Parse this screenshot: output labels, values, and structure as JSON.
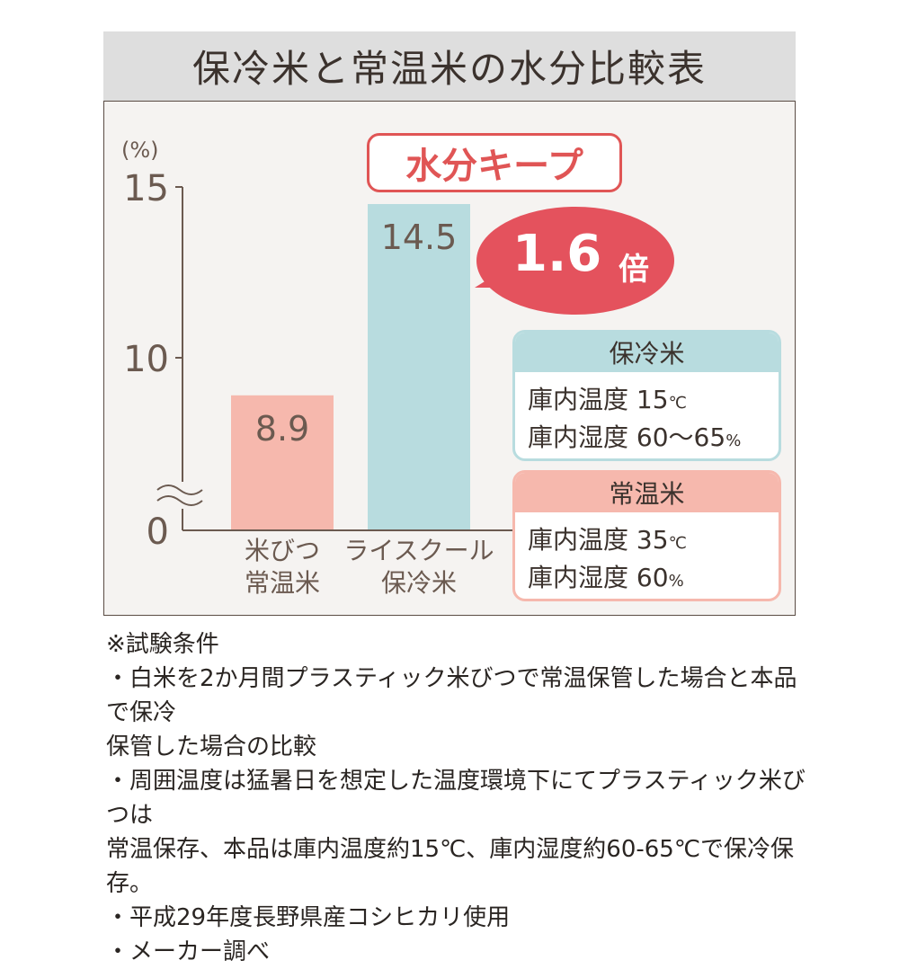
{
  "title": "保冷米と常温米の水分比較表",
  "badge": "水分キープ",
  "bubble": {
    "value": "1.6",
    "unit": "倍"
  },
  "chart_data": {
    "type": "bar",
    "title": "保冷米と常温米の水分比較表",
    "ylabel": "(%)",
    "categories": [
      [
        "米びつ",
        "常温米"
      ],
      [
        "ライスクール",
        "保冷米"
      ]
    ],
    "values": [
      8.9,
      14.5
    ],
    "data_labels": [
      "8.9",
      "14.5"
    ],
    "colors": [
      "#f6b8ad",
      "#b8dcdf"
    ],
    "yticks": [
      "0",
      "10",
      "15"
    ],
    "ylim": [
      0,
      15
    ],
    "axis_break": true
  },
  "info": [
    {
      "header": "保冷米",
      "color": "#b8dcdf",
      "lines": [
        {
          "label": "庫内温度",
          "value": "15",
          "unit": "℃"
        },
        {
          "label": "庫内湿度",
          "value": "60〜65",
          "unit": "%"
        }
      ]
    },
    {
      "header": "常温米",
      "color": "#f6b8ad",
      "lines": [
        {
          "label": "庫内温度",
          "value": "35",
          "unit": "℃"
        },
        {
          "label": "庫内湿度",
          "value": "60",
          "unit": "%"
        }
      ]
    }
  ],
  "notes": [
    "※試験条件",
    "・白米を2か月間プラスティック米びつで常温保管した場合と本品で保冷",
    "保管した場合の比較",
    "・周囲温度は猛暑日を想定した温度環境下にてプラスティック米びつは",
    "常温保存、本品は庫内温度約15℃、庫内湿度約60-65℃で保冷保存。",
    "・平成29年度長野県産コシヒカリ使用",
    "・メーカー調べ"
  ]
}
